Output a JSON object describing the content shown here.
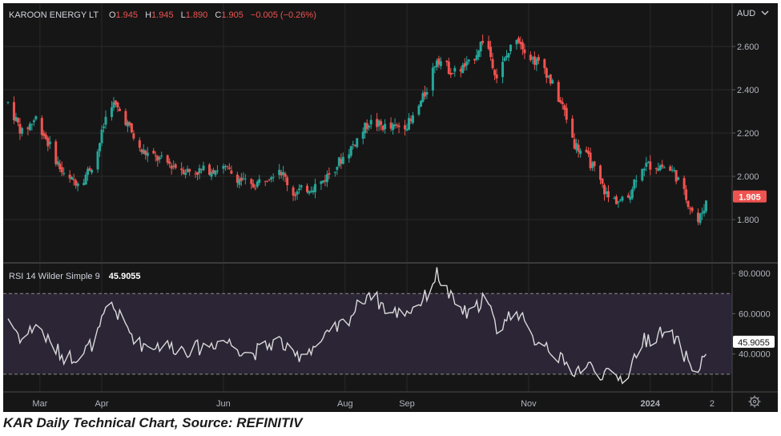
{
  "colors": {
    "background": "#161616",
    "up": "#26a69a",
    "down": "#ef5350",
    "rsi_line": "#d9d9d9",
    "rsi_band": "#2b2536",
    "grid": "#2a2a2a",
    "text": "#d1d4dc",
    "axis_text": "#b2b5be"
  },
  "header": {
    "symbol": "KAROON ENERGY LT",
    "open_label": "O",
    "open_value": "1.945",
    "high_label": "H",
    "high_value": "1.945",
    "low_label": "L",
    "low_value": "1.890",
    "close_label": "C",
    "close_value": "1.905",
    "change": "−0.005 (−0.26%)"
  },
  "currency": "AUD",
  "caption": "KAR Daily Technical Chart, Source: REFINITIV",
  "rsi_panel": {
    "label": "RSI 14 Wilder Simple 9",
    "value": "45.9055"
  },
  "chart_data": [
    {
      "type": "candlestick",
      "title": "KAROON ENERGY LT",
      "unit": "AUD",
      "ylim": [
        1.6,
        2.8
      ],
      "y_ticks": [
        "2.600",
        "2.400",
        "2.200",
        "2.000",
        "1.800"
      ],
      "last_price": "1.905",
      "x_ticks": [
        "Mar",
        "Apr",
        "Jun",
        "Aug",
        "Sep",
        "Nov",
        "2024",
        "2"
      ],
      "grid": true,
      "anchor_points": [
        {
          "x": "Feb 13",
          "y": 2.34
        },
        {
          "x": "Feb 20",
          "y": 2.2
        },
        {
          "x": "Feb 27",
          "y": 2.27
        },
        {
          "x": "Mar 7",
          "y": 2.12
        },
        {
          "x": "Mar 14",
          "y": 1.98
        },
        {
          "x": "Mar 22",
          "y": 1.98
        },
        {
          "x": "Mar 29",
          "y": 2.08
        },
        {
          "x": "Apr 5",
          "y": 2.35
        },
        {
          "x": "Apr 12",
          "y": 2.28
        },
        {
          "x": "Apr 20",
          "y": 2.12
        },
        {
          "x": "May 4",
          "y": 2.06
        },
        {
          "x": "May 16",
          "y": 2.02
        },
        {
          "x": "Jun 1",
          "y": 2.04
        },
        {
          "x": "Jun 15",
          "y": 1.95
        },
        {
          "x": "Jun 29",
          "y": 2.04
        },
        {
          "x": "Jul 6",
          "y": 1.92
        },
        {
          "x": "Jul 20",
          "y": 1.97
        },
        {
          "x": "Aug 3",
          "y": 2.12
        },
        {
          "x": "Aug 13",
          "y": 2.25
        },
        {
          "x": "Aug 24",
          "y": 2.22
        },
        {
          "x": "Sep 3",
          "y": 2.25
        },
        {
          "x": "Sep 10",
          "y": 2.38
        },
        {
          "x": "Sep 16",
          "y": 2.55
        },
        {
          "x": "Sep 24",
          "y": 2.48
        },
        {
          "x": "Oct 3",
          "y": 2.52
        },
        {
          "x": "Oct 10",
          "y": 2.65
        },
        {
          "x": "Oct 16",
          "y": 2.46
        },
        {
          "x": "Oct 26",
          "y": 2.65
        },
        {
          "x": "Nov 2",
          "y": 2.55
        },
        {
          "x": "Nov 9",
          "y": 2.5
        },
        {
          "x": "Nov 19",
          "y": 2.3
        },
        {
          "x": "Nov 24",
          "y": 2.15
        },
        {
          "x": "Dec 1",
          "y": 2.08
        },
        {
          "x": "Dec 11",
          "y": 1.9
        },
        {
          "x": "Dec 20",
          "y": 1.88
        },
        {
          "x": "Dec 27",
          "y": 2.05
        },
        {
          "x": "Jan 6",
          "y": 2.05
        },
        {
          "x": "Jan 13",
          "y": 2.02
        },
        {
          "x": "Jan 20",
          "y": 1.88
        },
        {
          "x": "Jan 25",
          "y": 1.79
        },
        {
          "x": "Jan 30",
          "y": 1.905
        }
      ]
    },
    {
      "type": "line",
      "title": "RSI 14 Wilder Simple 9",
      "ylim": [
        22,
        84
      ],
      "y_ticks": [
        "80.0000",
        "60.0000",
        "40.0000"
      ],
      "bands": [
        30,
        70
      ],
      "last_value": "45.9055",
      "x_ticks": [
        "Mar",
        "Apr",
        "Jun",
        "Aug",
        "Sep",
        "Nov",
        "2024",
        "2"
      ],
      "points": [
        {
          "x": "Feb 13",
          "y": 58
        },
        {
          "x": "Feb 20",
          "y": 47
        },
        {
          "x": "Feb 27",
          "y": 55
        },
        {
          "x": "Mar 7",
          "y": 44
        },
        {
          "x": "Mar 14",
          "y": 38
        },
        {
          "x": "Mar 22",
          "y": 40
        },
        {
          "x": "Mar 29",
          "y": 47
        },
        {
          "x": "Apr 5",
          "y": 66
        },
        {
          "x": "Apr 12",
          "y": 55
        },
        {
          "x": "Apr 20",
          "y": 45
        },
        {
          "x": "May 4",
          "y": 44
        },
        {
          "x": "May 16",
          "y": 42
        },
        {
          "x": "Jun 1",
          "y": 47
        },
        {
          "x": "Jun 15",
          "y": 40
        },
        {
          "x": "Jun 29",
          "y": 47
        },
        {
          "x": "Jul 6",
          "y": 38
        },
        {
          "x": "Jul 20",
          "y": 46
        },
        {
          "x": "Aug 3",
          "y": 58
        },
        {
          "x": "Aug 13",
          "y": 71
        },
        {
          "x": "Aug 24",
          "y": 60
        },
        {
          "x": "Sep 3",
          "y": 62
        },
        {
          "x": "Sep 10",
          "y": 68
        },
        {
          "x": "Sep 16",
          "y": 80
        },
        {
          "x": "Sep 24",
          "y": 66
        },
        {
          "x": "Oct 3",
          "y": 58
        },
        {
          "x": "Oct 10",
          "y": 70
        },
        {
          "x": "Oct 16",
          "y": 52
        },
        {
          "x": "Oct 26",
          "y": 63
        },
        {
          "x": "Nov 2",
          "y": 48
        },
        {
          "x": "Nov 9",
          "y": 46
        },
        {
          "x": "Nov 19",
          "y": 35
        },
        {
          "x": "Nov 24",
          "y": 32
        },
        {
          "x": "Dec 1",
          "y": 34
        },
        {
          "x": "Dec 11",
          "y": 29
        },
        {
          "x": "Dec 20",
          "y": 28
        },
        {
          "x": "Dec 27",
          "y": 46
        },
        {
          "x": "Jan 6",
          "y": 50
        },
        {
          "x": "Jan 13",
          "y": 48
        },
        {
          "x": "Jan 20",
          "y": 37
        },
        {
          "x": "Jan 25",
          "y": 30
        },
        {
          "x": "Jan 30",
          "y": 45.9055
        }
      ]
    }
  ]
}
